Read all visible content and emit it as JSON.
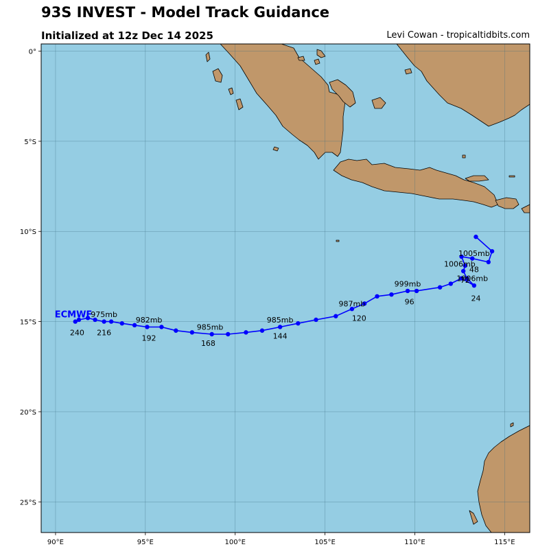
{
  "header": {
    "title": "93S INVEST - Model Track Guidance",
    "subtitle": "Initialized at 12z Dec 14 2025",
    "credit": "Levi Cowan - tropicaltidbits.com"
  },
  "colors": {
    "ocean": "#95cde3",
    "land": "#c0976a",
    "track": "#0000ff",
    "grid": "#3a6a80"
  },
  "axes": {
    "lon_range": [
      89.2,
      116.4
    ],
    "lat_range": [
      -26.7,
      0.4
    ],
    "x_ticks": [
      {
        "value": 90,
        "label": "90°E"
      },
      {
        "value": 95,
        "label": "95°E"
      },
      {
        "value": 100,
        "label": "100°E"
      },
      {
        "value": 105,
        "label": "105°E"
      },
      {
        "value": 110,
        "label": "110°E"
      },
      {
        "value": 115,
        "label": "115°E"
      }
    ],
    "y_ticks": [
      {
        "value": 0,
        "label": "0°"
      },
      {
        "value": -5,
        "label": "5°S"
      },
      {
        "value": -10,
        "label": "10°S"
      },
      {
        "value": -15,
        "label": "15°S"
      },
      {
        "value": -20,
        "label": "20°S"
      },
      {
        "value": -25,
        "label": "25°S"
      }
    ]
  },
  "track": {
    "model": "ECMWF",
    "points": [
      [
        113.4,
        -10.3
      ],
      [
        114.3,
        -11.1
      ],
      [
        114.1,
        -11.7
      ],
      [
        113.2,
        -11.5
      ],
      [
        112.6,
        -11.4
      ],
      [
        112.8,
        -11.9
      ],
      [
        112.7,
        -12.2
      ],
      [
        112.9,
        -12.6
      ],
      [
        113.3,
        -13.0
      ],
      [
        112.6,
        -12.6
      ],
      [
        112.0,
        -12.9
      ],
      [
        111.4,
        -13.1
      ],
      [
        110.1,
        -13.3
      ],
      [
        109.6,
        -13.3
      ],
      [
        108.7,
        -13.5
      ],
      [
        107.9,
        -13.6
      ],
      [
        107.2,
        -14.0
      ],
      [
        106.5,
        -14.3
      ],
      [
        105.6,
        -14.7
      ],
      [
        104.5,
        -14.9
      ],
      [
        103.5,
        -15.1
      ],
      [
        102.5,
        -15.3
      ],
      [
        101.5,
        -15.5
      ],
      [
        100.6,
        -15.6
      ],
      [
        99.6,
        -15.7
      ],
      [
        98.7,
        -15.7
      ],
      [
        97.6,
        -15.6
      ],
      [
        96.7,
        -15.5
      ],
      [
        95.9,
        -15.3
      ],
      [
        95.1,
        -15.3
      ],
      [
        94.4,
        -15.2
      ],
      [
        93.7,
        -15.1
      ],
      [
        93.1,
        -15.0
      ],
      [
        92.7,
        -15.0
      ],
      [
        92.2,
        -14.9
      ],
      [
        91.8,
        -14.8
      ],
      [
        91.3,
        -14.9
      ],
      [
        91.1,
        -15.0
      ]
    ],
    "hour_labels": [
      {
        "text": "24",
        "lon": 113.4,
        "lat": -13.7
      },
      {
        "text": "48",
        "lon": 113.3,
        "lat": -12.1
      },
      {
        "text": "72",
        "lon": 112.8,
        "lat": -12.7
      },
      {
        "text": "96",
        "lon": 109.7,
        "lat": -13.9
      },
      {
        "text": "120",
        "lon": 106.9,
        "lat": -14.8
      },
      {
        "text": "144",
        "lon": 102.5,
        "lat": -15.8
      },
      {
        "text": "168",
        "lon": 98.5,
        "lat": -16.2
      },
      {
        "text": "192",
        "lon": 95.2,
        "lat": -15.9
      },
      {
        "text": "216",
        "lon": 92.7,
        "lat": -15.6
      },
      {
        "text": "240",
        "lon": 91.2,
        "lat": -15.6
      }
    ],
    "pressure_labels": [
      {
        "text": "1005mb",
        "lon": 113.3,
        "lat": -11.2
      },
      {
        "text": "1006mb",
        "lon": 112.5,
        "lat": -11.8
      },
      {
        "text": "1006mb",
        "lon": 113.2,
        "lat": -12.6
      },
      {
        "text": "999mb",
        "lon": 109.6,
        "lat": -12.9
      },
      {
        "text": "987mb",
        "lon": 106.5,
        "lat": -14.0
      },
      {
        "text": "985mb",
        "lon": 102.5,
        "lat": -14.9
      },
      {
        "text": "985mb",
        "lon": 98.6,
        "lat": -15.3
      },
      {
        "text": "982mb",
        "lon": 95.2,
        "lat": -14.9
      },
      {
        "text": "975mb",
        "lon": 92.7,
        "lat": -14.6
      }
    ]
  }
}
